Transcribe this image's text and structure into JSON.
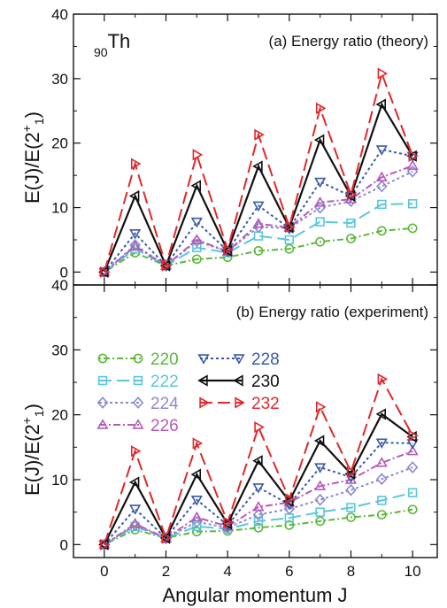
{
  "figure": {
    "xlabel": "Angular momentum J",
    "ylabel_main": "E(J)/E(2",
    "ylabel_sup": "+",
    "ylabel_sub": "1",
    "ylabel_end": ")",
    "element_mass": "90",
    "element_symbol": "Th"
  },
  "legend": [
    {
      "label": "220",
      "color": "#5cb83c",
      "marker": "circle",
      "dash": "dotdash"
    },
    {
      "label": "222",
      "color": "#5bc6da",
      "marker": "square",
      "dash": "longdash"
    },
    {
      "label": "224",
      "color": "#8a8ad0",
      "marker": "diamond",
      "dash": "dot"
    },
    {
      "label": "226",
      "color": "#b45cb8",
      "marker": "triangle-up",
      "dash": "dashdot"
    },
    {
      "label": "228",
      "color": "#3a5aa8",
      "marker": "triangle-down",
      "dash": "dot"
    },
    {
      "label": "230",
      "color": "#111111",
      "marker": "triangle-left",
      "dash": "solid"
    },
    {
      "label": "232",
      "color": "#e0282a",
      "marker": "triangle-right",
      "dash": "longdash"
    }
  ],
  "chart_data": [
    {
      "type": "line",
      "title": "(a) Energy ratio (theory)",
      "xlabel": "Angular momentum J",
      "ylabel": "E(J)/E(2+1)",
      "xlim": [
        -1,
        10.8
      ],
      "ylim": [
        -2,
        40
      ],
      "xticks": [
        0,
        2,
        4,
        6,
        8,
        10
      ],
      "yticks": [
        0,
        10,
        20,
        30,
        40
      ],
      "x": [
        0,
        1,
        2,
        3,
        4,
        5,
        6,
        7,
        8,
        9,
        10
      ],
      "series": [
        {
          "name": "220",
          "values": [
            0,
            3.0,
            1,
            2.0,
            2.3,
            3.3,
            3.6,
            4.7,
            5.2,
            6.4,
            6.8
          ]
        },
        {
          "name": "222",
          "values": [
            0,
            3.6,
            1,
            3.8,
            3.0,
            5.6,
            5.0,
            7.8,
            7.6,
            10.5,
            10.6
          ]
        },
        {
          "name": "224",
          "values": [
            0,
            4.2,
            1,
            4.8,
            3.2,
            7.0,
            6.8,
            10.0,
            11.0,
            13.3,
            15.6
          ]
        },
        {
          "name": "226",
          "values": [
            0,
            4.0,
            1,
            5.0,
            3.2,
            7.5,
            6.9,
            10.8,
            11.3,
            14.7,
            16.5
          ]
        },
        {
          "name": "228",
          "values": [
            0,
            6.0,
            1,
            7.8,
            3.3,
            10.3,
            6.8,
            14.0,
            11.8,
            19.0,
            18.0
          ]
        },
        {
          "name": "230",
          "values": [
            0,
            11.8,
            1,
            13.4,
            3.3,
            16.4,
            6.9,
            20.5,
            11.8,
            26.0,
            18.0
          ]
        },
        {
          "name": "232",
          "values": [
            0,
            16.8,
            1,
            18.2,
            3.5,
            21.3,
            7.0,
            25.4,
            12.0,
            30.8,
            18.0
          ]
        }
      ]
    },
    {
      "type": "line",
      "title": "(b) Energy ratio (experiment)",
      "xlabel": "Angular momentum J",
      "ylabel": "E(J)/E(2+1)",
      "xlim": [
        -1,
        10.8
      ],
      "ylim": [
        -2,
        40
      ],
      "xticks": [
        0,
        2,
        4,
        6,
        8,
        10
      ],
      "yticks": [
        0,
        10,
        20,
        30,
        40
      ],
      "x": [
        0,
        1,
        2,
        3,
        4,
        5,
        6,
        7,
        8,
        9,
        10
      ],
      "series": [
        {
          "name": "220",
          "values": [
            0,
            2.3,
            1,
            2.0,
            2.1,
            2.6,
            3.0,
            3.6,
            4.2,
            4.6,
            5.4
          ]
        },
        {
          "name": "222",
          "values": [
            0,
            2.8,
            1,
            2.8,
            2.4,
            3.6,
            4.1,
            5.0,
            5.7,
            6.8,
            8.0
          ]
        },
        {
          "name": "224",
          "values": [
            0,
            3.0,
            1,
            3.5,
            2.6,
            4.6,
            5.5,
            6.9,
            8.4,
            10.1,
            11.9
          ]
        },
        {
          "name": "226",
          "values": [
            0,
            3.2,
            1,
            4.2,
            2.8,
            5.8,
            6.5,
            9.0,
            10.0,
            12.6,
            14.4
          ]
        },
        {
          "name": "228",
          "values": [
            0,
            5.5,
            1,
            6.9,
            3.0,
            8.8,
            6.2,
            11.9,
            10.4,
            15.7,
            15.6
          ]
        },
        {
          "name": "230",
          "values": [
            0,
            9.6,
            1,
            10.8,
            3.2,
            12.9,
            6.7,
            16.0,
            10.9,
            20.1,
            16.6
          ]
        },
        {
          "name": "232",
          "values": [
            0,
            14.4,
            1,
            15.6,
            3.4,
            18.1,
            7.0,
            21.2,
            11.2,
            25.5,
            16.8
          ]
        }
      ]
    }
  ]
}
